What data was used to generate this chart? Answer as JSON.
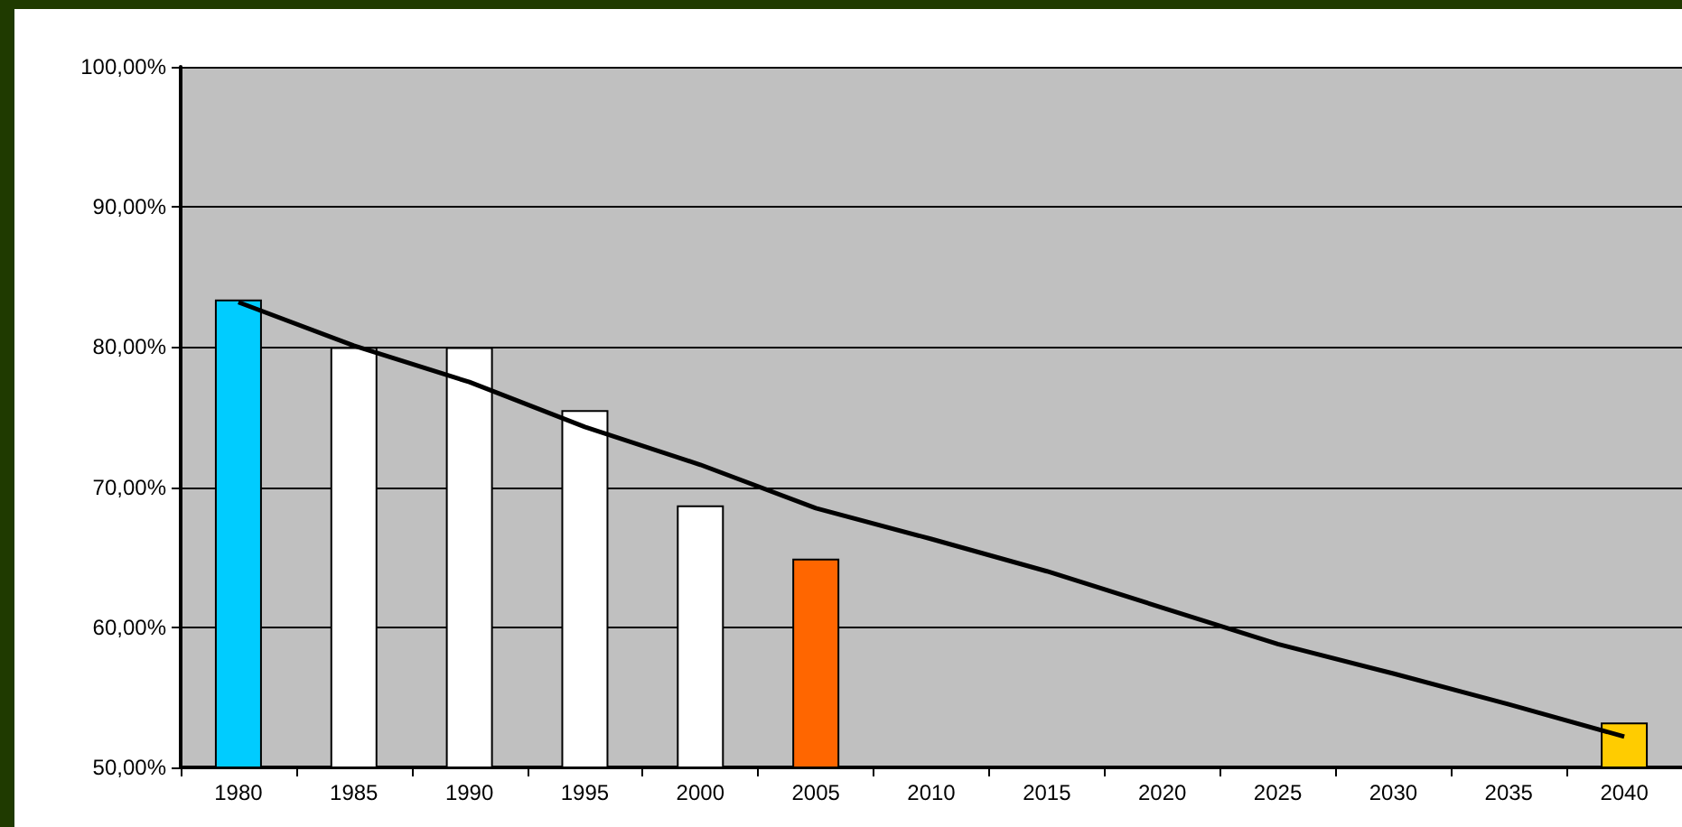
{
  "chart_data": {
    "type": "bar",
    "categories": [
      "1980",
      "1985",
      "1990",
      "1995",
      "2000",
      "2005",
      "2010",
      "2015",
      "2020",
      "2025",
      "2030",
      "2035",
      "2040"
    ],
    "series": [
      {
        "values": [
          83.4,
          80.0,
          80.0,
          75.5,
          68.7,
          64.9,
          null,
          null,
          null,
          null,
          null,
          null,
          53.2
        ],
        "colors": [
          "#00ccff",
          "#ffffff",
          "#ffffff",
          "#ffffff",
          "#ffffff",
          "#ff6600",
          null,
          null,
          null,
          null,
          null,
          null,
          "#ffcc00"
        ]
      },
      {
        "type": "line",
        "color": "#000000",
        "values": [
          83.2,
          80.1,
          77.5,
          74.3,
          71.6,
          68.5,
          66.3,
          64.0,
          61.4,
          58.8,
          56.7,
          54.5,
          52.2
        ]
      }
    ],
    "ylim": [
      50,
      100
    ],
    "yticks": [
      {
        "value": 50,
        "label": "50,00%"
      },
      {
        "value": 60,
        "label": "60,00%"
      },
      {
        "value": 70,
        "label": "70,00%"
      },
      {
        "value": 80,
        "label": "80,00%"
      },
      {
        "value": 90,
        "label": "90,00%"
      },
      {
        "value": 100,
        "label": "100,00%"
      }
    ],
    "grid": "y",
    "marker": "none",
    "line_style": "solid"
  }
}
